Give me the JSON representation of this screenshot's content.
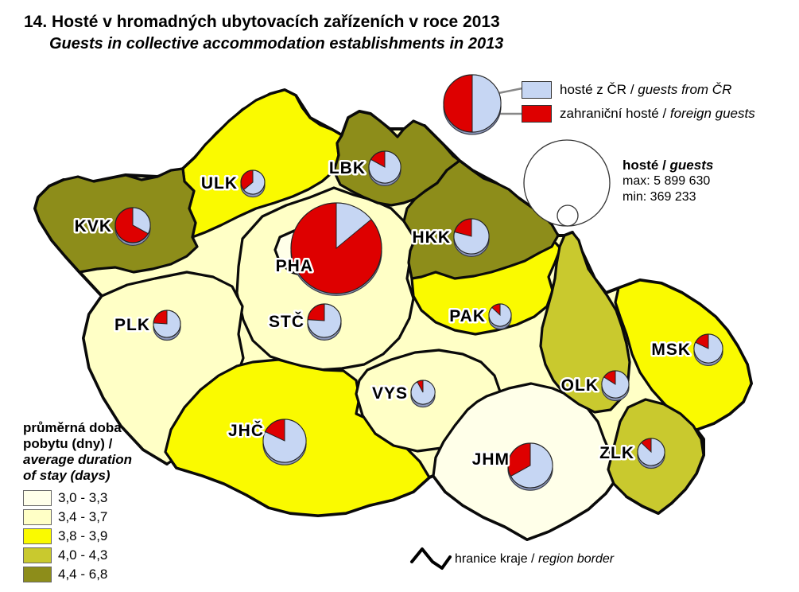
{
  "figure": {
    "number_title": "14. Hosté v hromadných ubytovacích zařízeních v roce 2013",
    "subtitle": "Guests in collective accommodation establishments in 2013"
  },
  "pie_legend": {
    "separator": " / ",
    "items": [
      {
        "key": "domestic",
        "label_cz": "hosté z ČR",
        "label_en": "guests from ČR",
        "color": "#C6D6F3"
      },
      {
        "key": "foreign",
        "label_cz": "zahraniční hosté",
        "label_en": "foreign guests",
        "color": "#DE0000"
      }
    ]
  },
  "size_legend": {
    "title_cz": "hosté",
    "title_en": "guests",
    "separator": " / ",
    "max_label": "max: 5 899 630",
    "min_label": "min: 369 233"
  },
  "duration_legend": {
    "title_cz_lines": [
      "průměrná doba",
      "pobytu (dny) /"
    ],
    "title_en_lines": [
      "average duration",
      "of stay (days)"
    ],
    "classes": [
      {
        "range": "3,0 - 3,3",
        "color": "#FFFFE9"
      },
      {
        "range": "3,4 - 3,7",
        "color": "#FFFFC6"
      },
      {
        "range": "3,8 - 3,9",
        "color": "#FAFA00"
      },
      {
        "range": "4,0 - 4,3",
        "color": "#C9C92E"
      },
      {
        "range": "4,4 - 6,8",
        "color": "#8D8D1A"
      }
    ]
  },
  "border_legend": {
    "label_cz": "hranice kraje",
    "label_en": "region border",
    "separator": " / ",
    "color": "#000000"
  },
  "chart_data": {
    "type": "map-pie",
    "title": "14. Hosté v hromadných ubytovacích zařízeních v roce 2013",
    "subtitle_en": "Guests in collective accommodation establishments in 2013",
    "pie_size_meaning": "total guests",
    "guests_max": 5899630,
    "guests_min": 369233,
    "regions": [
      {
        "code": "PHA",
        "duration_class": "3,0 - 3,3",
        "foreign_share": 0.86,
        "domestic_share": 0.14,
        "pie_radius_px": 57
      },
      {
        "code": "STČ",
        "duration_class": "3,4 - 3,7",
        "foreign_share": 0.24,
        "domestic_share": 0.76,
        "pie_radius_px": 21
      },
      {
        "code": "JHČ",
        "duration_class": "3,8 - 3,9",
        "foreign_share": 0.18,
        "domestic_share": 0.82,
        "pie_radius_px": 27
      },
      {
        "code": "PLK",
        "duration_class": "3,4 - 3,7",
        "foreign_share": 0.24,
        "domestic_share": 0.76,
        "pie_radius_px": 17
      },
      {
        "code": "KVK",
        "duration_class": "4,4 - 6,8",
        "foreign_share": 0.67,
        "domestic_share": 0.33,
        "pie_radius_px": 22
      },
      {
        "code": "ULK",
        "duration_class": "3,8 - 3,9",
        "foreign_share": 0.36,
        "domestic_share": 0.64,
        "pie_radius_px": 15
      },
      {
        "code": "LBK",
        "duration_class": "4,4 - 6,8",
        "foreign_share": 0.17,
        "domestic_share": 0.83,
        "pie_radius_px": 20
      },
      {
        "code": "HKK",
        "duration_class": "4,4 - 6,8",
        "foreign_share": 0.21,
        "domestic_share": 0.79,
        "pie_radius_px": 22
      },
      {
        "code": "PAK",
        "duration_class": "3,8 - 3,9",
        "foreign_share": 0.13,
        "domestic_share": 0.87,
        "pie_radius_px": 14
      },
      {
        "code": "VYS",
        "duration_class": "3,4 - 3,7",
        "foreign_share": 0.08,
        "domestic_share": 0.92,
        "pie_radius_px": 15
      },
      {
        "code": "JHM",
        "duration_class": "3,0 - 3,3",
        "foreign_share": 0.33,
        "domestic_share": 0.67,
        "pie_radius_px": 28
      },
      {
        "code": "OLK",
        "duration_class": "4,0 - 4,3",
        "foreign_share": 0.16,
        "domestic_share": 0.84,
        "pie_radius_px": 17
      },
      {
        "code": "ZLK",
        "duration_class": "4,0 - 4,3",
        "foreign_share": 0.13,
        "domestic_share": 0.87,
        "pie_radius_px": 17
      },
      {
        "code": "MSK",
        "duration_class": "3,8 - 3,9",
        "foreign_share": 0.18,
        "domestic_share": 0.82,
        "pie_radius_px": 18
      }
    ]
  }
}
